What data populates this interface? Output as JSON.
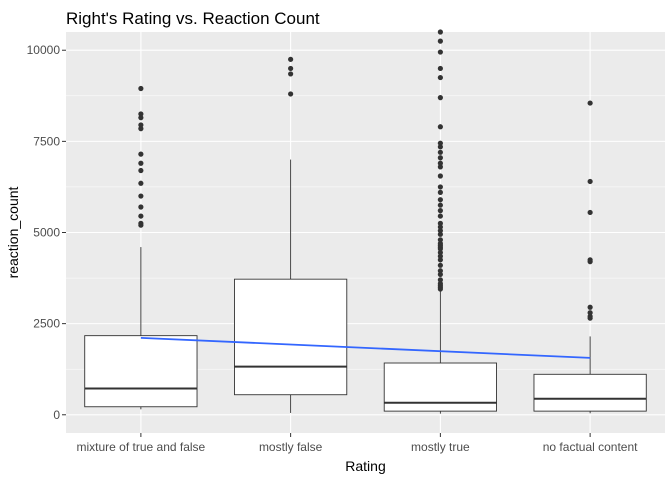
{
  "chart_data": {
    "type": "box",
    "title": "Right's Rating vs. Reaction Count",
    "xlabel": "Rating",
    "ylabel": "reaction_count",
    "categories": [
      "mixture of true and false",
      "mostly false",
      "mostly true",
      "no factual content"
    ],
    "ylim": [
      -500,
      10500
    ],
    "yticks": [
      0,
      2500,
      5000,
      7500,
      10000
    ],
    "ytick_labels": [
      "0",
      "2500",
      "5000",
      "7500",
      "10000"
    ],
    "grid": true,
    "colors": {
      "panel": "#ebebeb",
      "grid_major": "#ffffff",
      "box_fill": "#ffffff",
      "box_line": "#333333",
      "outlier": "#333333",
      "trend": "#3366ff",
      "tick_text": "#4d4d4d"
    },
    "boxes": [
      {
        "category": "mixture of true and false",
        "lower_whisker": 150,
        "q1": 220,
        "median": 720,
        "q3": 2170,
        "upper_whisker": 4600,
        "outliers": [
          5200,
          5250,
          5450,
          5700,
          6000,
          6350,
          6700,
          6900,
          7150,
          7850,
          7950,
          8150,
          8250,
          8950
        ]
      },
      {
        "category": "mostly false",
        "lower_whisker": 50,
        "q1": 550,
        "median": 1320,
        "q3": 3720,
        "upper_whisker": 7000,
        "outliers": [
          8800,
          9350,
          9500,
          9750
        ]
      },
      {
        "category": "mostly true",
        "lower_whisker": 30,
        "q1": 100,
        "median": 330,
        "q3": 1420,
        "upper_whisker": 3400,
        "outliers": [
          3450,
          3500,
          3550,
          3600,
          3700,
          3850,
          3950,
          4100,
          4250,
          4350,
          4450,
          4550,
          4600,
          4650,
          4700,
          4800,
          4950,
          5050,
          5150,
          5250,
          5450,
          5600,
          5750,
          5900,
          6100,
          6250,
          6550,
          6800,
          6900,
          7050,
          7200,
          7350,
          7450,
          7900,
          8700,
          9250,
          9500,
          9950,
          10250,
          10500
        ]
      },
      {
        "category": "no factual content",
        "lower_whisker": 40,
        "q1": 100,
        "median": 440,
        "q3": 1110,
        "upper_whisker": 2150,
        "outliers": [
          2650,
          2700,
          2800,
          2950,
          4200,
          4250,
          5550,
          6400,
          8550
        ]
      }
    ],
    "trend_line": {
      "x_start": "mixture of true and false",
      "x_end": "no factual content",
      "y_start": 2110,
      "y_end": 1560
    }
  }
}
